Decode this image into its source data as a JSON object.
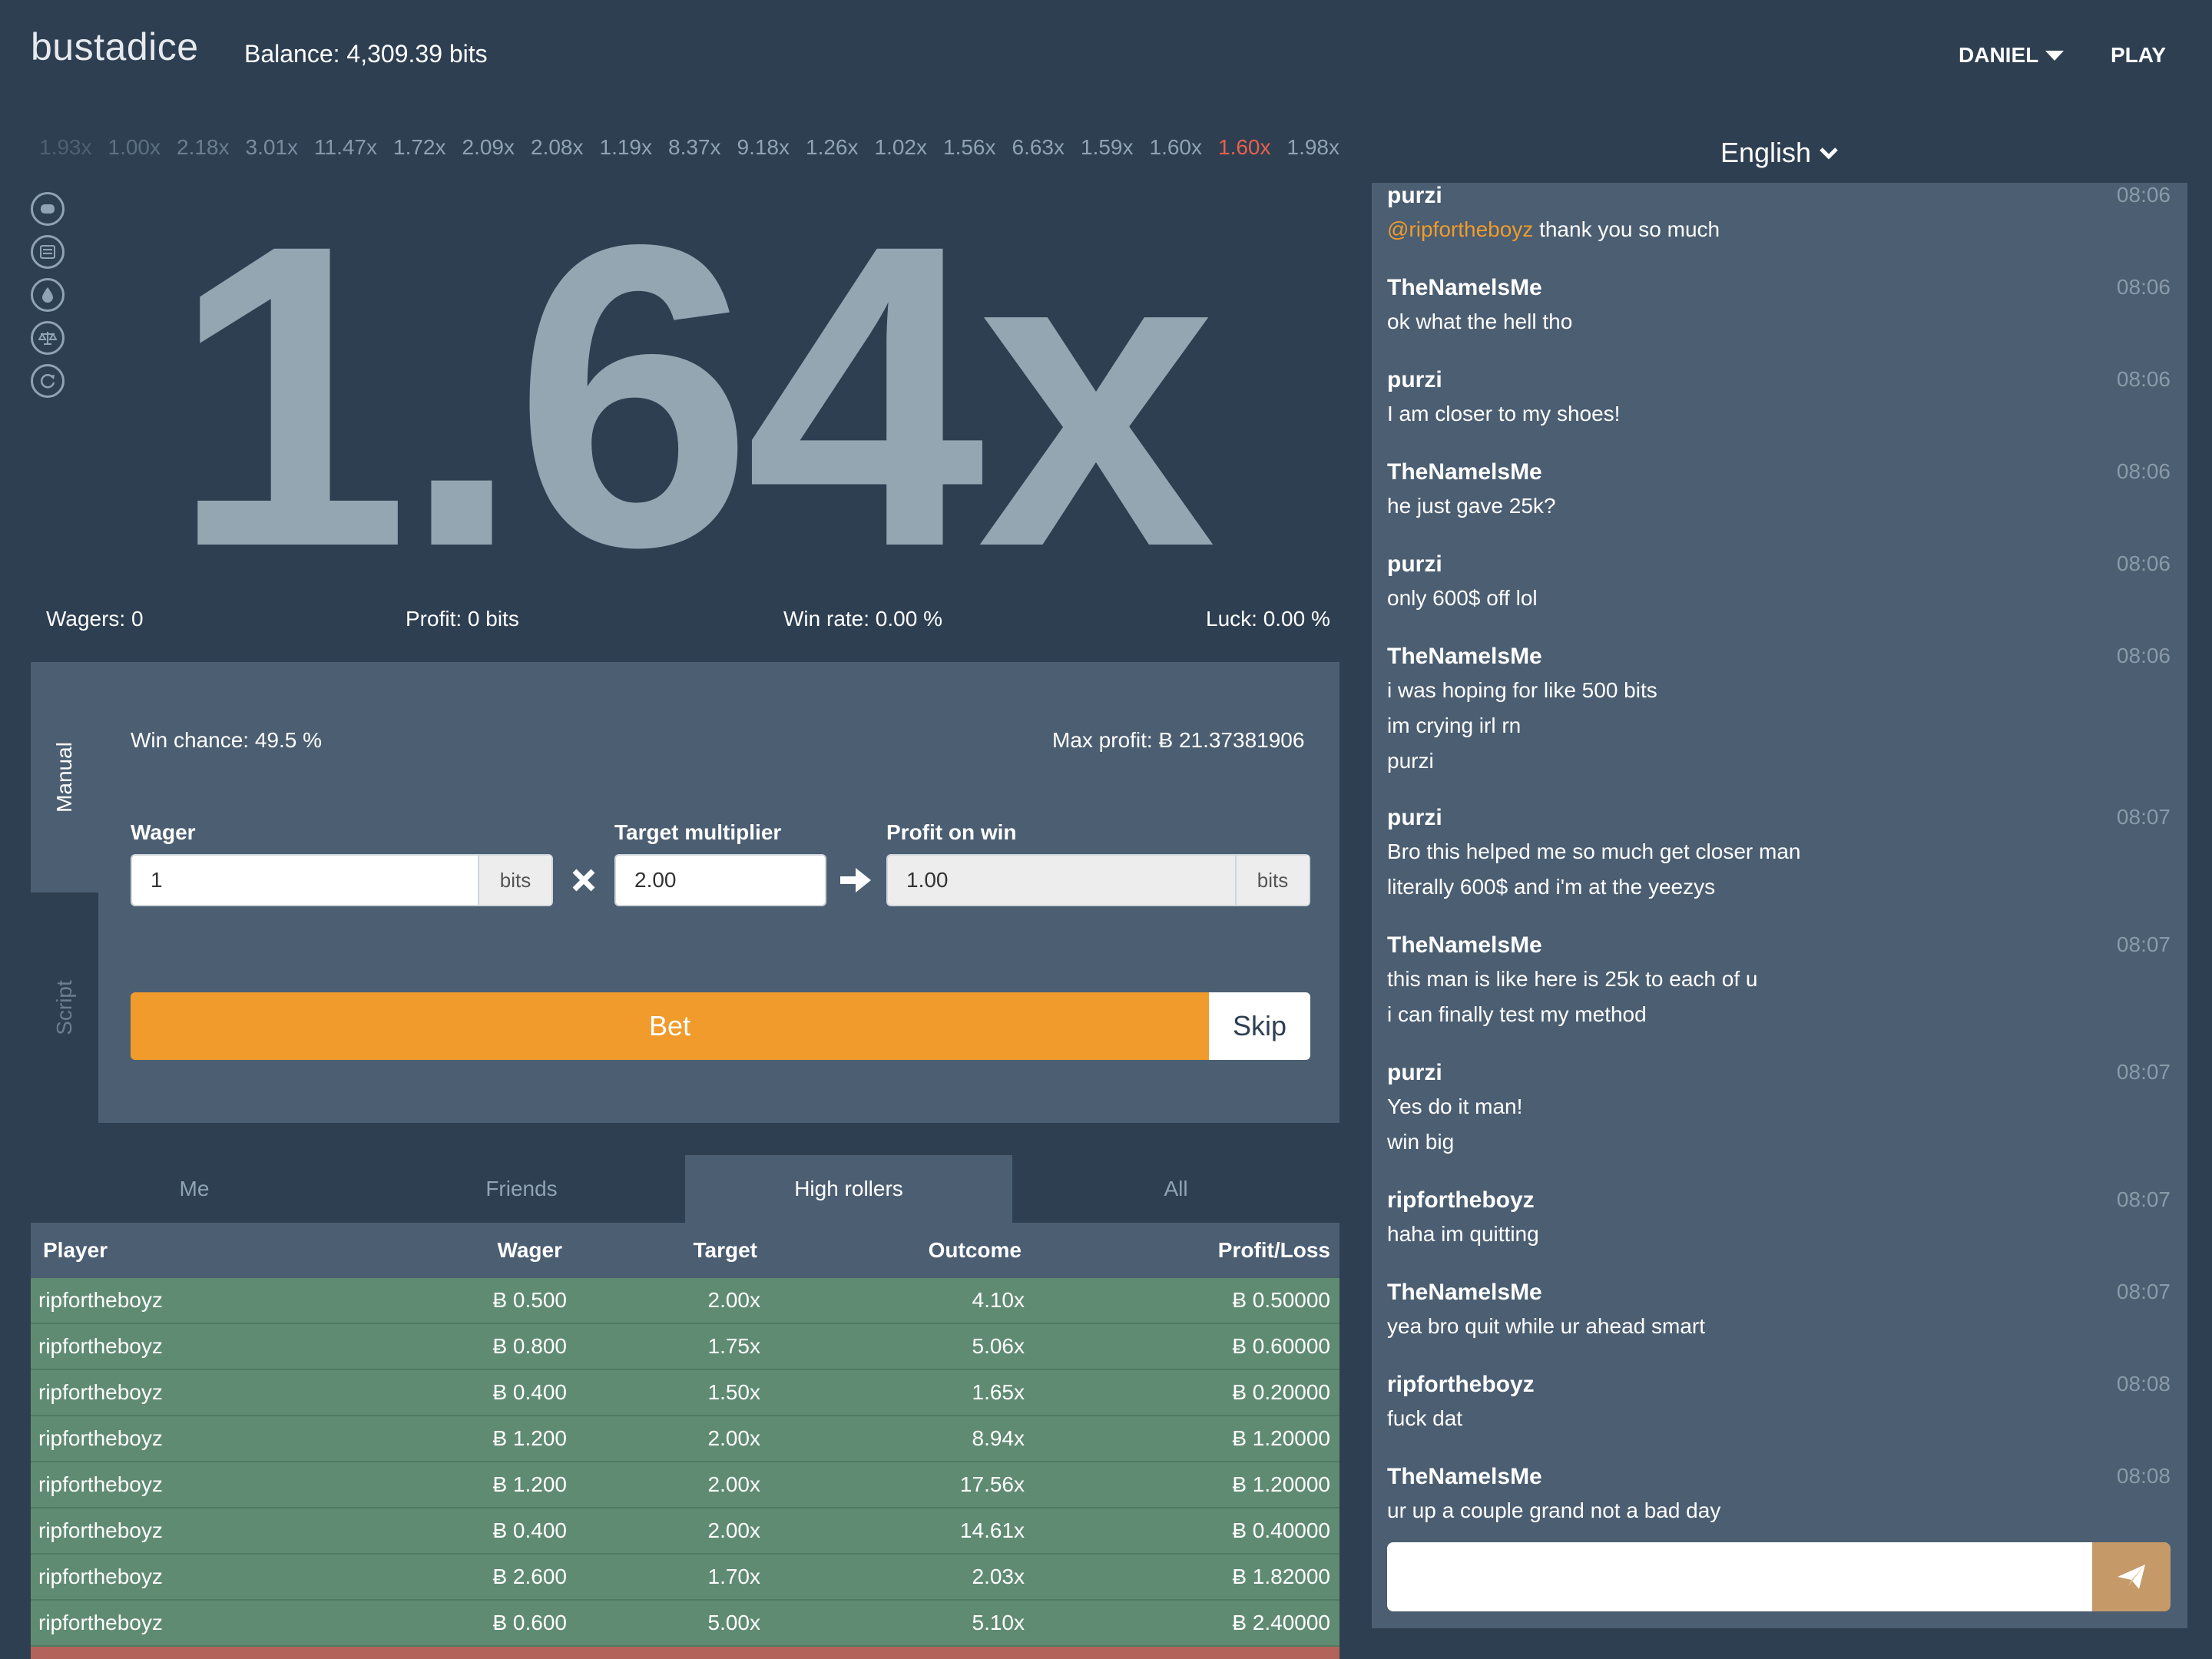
{
  "header": {
    "logo": "bustadice",
    "balance": "Balance: 4,309.39 bits",
    "username": "DANIEL",
    "play_label": "PLAY"
  },
  "history": [
    {
      "v": "1.93x",
      "c": "#4e6072"
    },
    {
      "v": "1.00x",
      "c": "#5d7082"
    },
    {
      "v": "2.18x",
      "c": "#6b7e90"
    },
    {
      "v": "3.01x",
      "c": "#7a8d9f"
    },
    {
      "v": "11.47x",
      "c": "#8698a8"
    },
    {
      "v": "1.72x",
      "c": "#8fa3b3"
    },
    {
      "v": "2.09x",
      "c": "#8fa3b3"
    },
    {
      "v": "2.08x",
      "c": "#8fa3b3"
    },
    {
      "v": "1.19x",
      "c": "#8fa3b3"
    },
    {
      "v": "8.37x",
      "c": "#8fa3b3"
    },
    {
      "v": "9.18x",
      "c": "#8fa3b3"
    },
    {
      "v": "1.26x",
      "c": "#8fa3b3"
    },
    {
      "v": "1.02x",
      "c": "#8fa3b3"
    },
    {
      "v": "1.56x",
      "c": "#8fa3b3"
    },
    {
      "v": "6.63x",
      "c": "#8fa3b3"
    },
    {
      "v": "1.59x",
      "c": "#8fa3b3"
    },
    {
      "v": "1.60x",
      "c": "#8fa3b3"
    },
    {
      "v": "1.60x",
      "c": "#e8604c"
    },
    {
      "v": "1.98x",
      "c": "#8fa3b3"
    }
  ],
  "side_icons": [
    "piggy-bank-icon",
    "calculator-icon",
    "faucet-drop-icon",
    "balance-scale-icon",
    "refresh-icon"
  ],
  "game": {
    "multiplier": "1.64x"
  },
  "stats": {
    "wagers": "Wagers: 0",
    "profit": "Profit: 0 bits",
    "win_rate": "Win rate: 0.00 %",
    "luck": "Luck: 0.00 %"
  },
  "bet_panel": {
    "tab_manual": "Manual",
    "tab_script": "Script",
    "win_chance": "Win chance: 49.5 %",
    "max_profit": "Max profit: Ƀ 21.37381906",
    "wager_label": "Wager",
    "wager_value": "1",
    "wager_unit": "bits",
    "target_label": "Target multiplier",
    "target_value": "2.00",
    "profit_label": "Profit on win",
    "profit_value": "1.00",
    "profit_unit": "bits",
    "bet_label": "Bet",
    "skip_label": "Skip"
  },
  "leaderboard": {
    "tabs": [
      "Me",
      "Friends",
      "High rollers",
      "All"
    ],
    "active_tab": "High rollers",
    "columns": [
      "Player",
      "Wager",
      "Target",
      "Outcome",
      "Profit/Loss"
    ],
    "rows": [
      [
        "ripfortheboyz",
        "Ƀ 0.500",
        "2.00x",
        "4.10x",
        "Ƀ 0.50000"
      ],
      [
        "ripfortheboyz",
        "Ƀ 0.800",
        "1.75x",
        "5.06x",
        "Ƀ 0.60000"
      ],
      [
        "ripfortheboyz",
        "Ƀ 0.400",
        "1.50x",
        "1.65x",
        "Ƀ 0.20000"
      ],
      [
        "ripfortheboyz",
        "Ƀ 1.200",
        "2.00x",
        "8.94x",
        "Ƀ 1.20000"
      ],
      [
        "ripfortheboyz",
        "Ƀ 1.200",
        "2.00x",
        "17.56x",
        "Ƀ 1.20000"
      ],
      [
        "ripfortheboyz",
        "Ƀ 0.400",
        "2.00x",
        "14.61x",
        "Ƀ 0.40000"
      ],
      [
        "ripfortheboyz",
        "Ƀ 2.600",
        "1.70x",
        "2.03x",
        "Ƀ 1.82000"
      ],
      [
        "ripfortheboyz",
        "Ƀ 0.600",
        "5.00x",
        "5.10x",
        "Ƀ 2.40000"
      ]
    ]
  },
  "chat": {
    "language": "English",
    "messages": [
      {
        "name": "purzi",
        "time": "08:06",
        "mention": "@ripfortheboyz",
        "lines": [
          "thank you so much"
        ]
      },
      {
        "name": "TheNamelsMe",
        "time": "08:06",
        "lines": [
          "ok what the hell tho"
        ]
      },
      {
        "name": "purzi",
        "time": "08:06",
        "lines": [
          "I am closer to my shoes!"
        ]
      },
      {
        "name": "TheNamelsMe",
        "time": "08:06",
        "lines": [
          "he just gave 25k?"
        ]
      },
      {
        "name": "purzi",
        "time": "08:06",
        "lines": [
          "only 600$ off lol"
        ]
      },
      {
        "name": "TheNamelsMe",
        "time": "08:06",
        "lines": [
          "i was hoping for like 500 bits",
          "im crying irl rn",
          "purzi"
        ]
      },
      {
        "name": "purzi",
        "time": "08:07",
        "lines": [
          "Bro this helped me so much get closer man",
          "literally 600$ and i'm at the yeezys"
        ]
      },
      {
        "name": "TheNamelsMe",
        "time": "08:07",
        "lines": [
          "this man is like here is 25k to each of u",
          "i can finally test my method"
        ]
      },
      {
        "name": "purzi",
        "time": "08:07",
        "lines": [
          "Yes do it man!",
          "win big"
        ]
      },
      {
        "name": "ripfortheboyz",
        "time": "08:07",
        "lines": [
          "haha im quitting"
        ]
      },
      {
        "name": "TheNamelsMe",
        "time": "08:07",
        "lines": [
          "yea bro quit while ur ahead smart"
        ]
      },
      {
        "name": "ripfortheboyz",
        "time": "08:08",
        "lines": [
          "fuck dat"
        ]
      },
      {
        "name": "TheNamelsMe",
        "time": "08:08",
        "lines": [
          "ur up a couple grand not a bad day"
        ]
      }
    ]
  },
  "colors": {
    "accent": "#f09b2b",
    "win_row": "#5f8b72",
    "loss": "#e8604c",
    "panel": "#4b5e72",
    "bg": "#2e3f52"
  }
}
